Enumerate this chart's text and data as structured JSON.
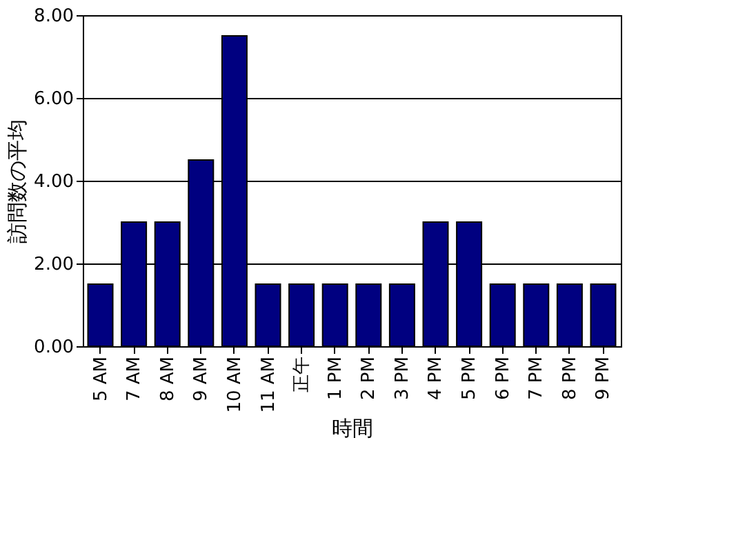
{
  "chart_data": {
    "type": "bar",
    "xlabel": "時間",
    "ylabel": "訪問数の平均",
    "categories": [
      "5 AM",
      "7 AM",
      "8 AM",
      "9 AM",
      "10 AM",
      "11 AM",
      "正午",
      "1 PM",
      "2 PM",
      "3 PM",
      "4 PM",
      "5 PM",
      "6 PM",
      "7 PM",
      "8 PM",
      "9 PM"
    ],
    "values": [
      1.5,
      3.0,
      3.0,
      4.5,
      7.5,
      1.5,
      1.5,
      1.5,
      1.5,
      1.5,
      3.0,
      3.0,
      1.5,
      1.5,
      1.5,
      1.5
    ],
    "color": "#000080",
    "ylim": [
      0,
      8
    ],
    "yticks": [
      {
        "value": 0,
        "label": "0.00"
      },
      {
        "value": 2,
        "label": "2.00"
      },
      {
        "value": 4,
        "label": "4.00"
      },
      {
        "value": 6,
        "label": "6.00"
      },
      {
        "value": 8,
        "label": "8.00"
      }
    ],
    "grid": "y"
  }
}
